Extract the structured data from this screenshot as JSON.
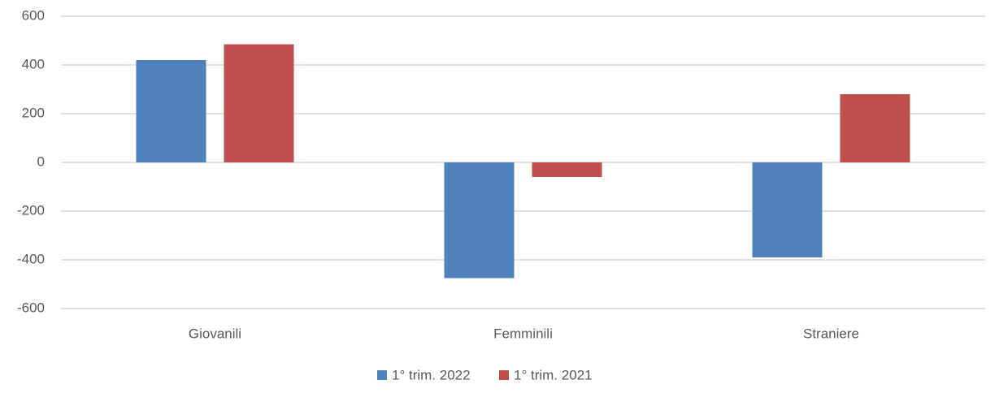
{
  "chart_data": {
    "type": "bar",
    "categories": [
      "Giovanili",
      "Femminili",
      "Straniere"
    ],
    "series": [
      {
        "name": "1° trim. 2022",
        "color": "#4f81bd",
        "values": [
          420,
          -475,
          -390
        ]
      },
      {
        "name": "1° trim. 2021",
        "color": "#c0504d",
        "values": [
          485,
          -60,
          280
        ]
      }
    ],
    "ylim": [
      -600,
      600
    ],
    "yticks": [
      -600,
      -400,
      -200,
      0,
      200,
      400,
      600
    ],
    "grid": true,
    "legend": "bottom"
  }
}
